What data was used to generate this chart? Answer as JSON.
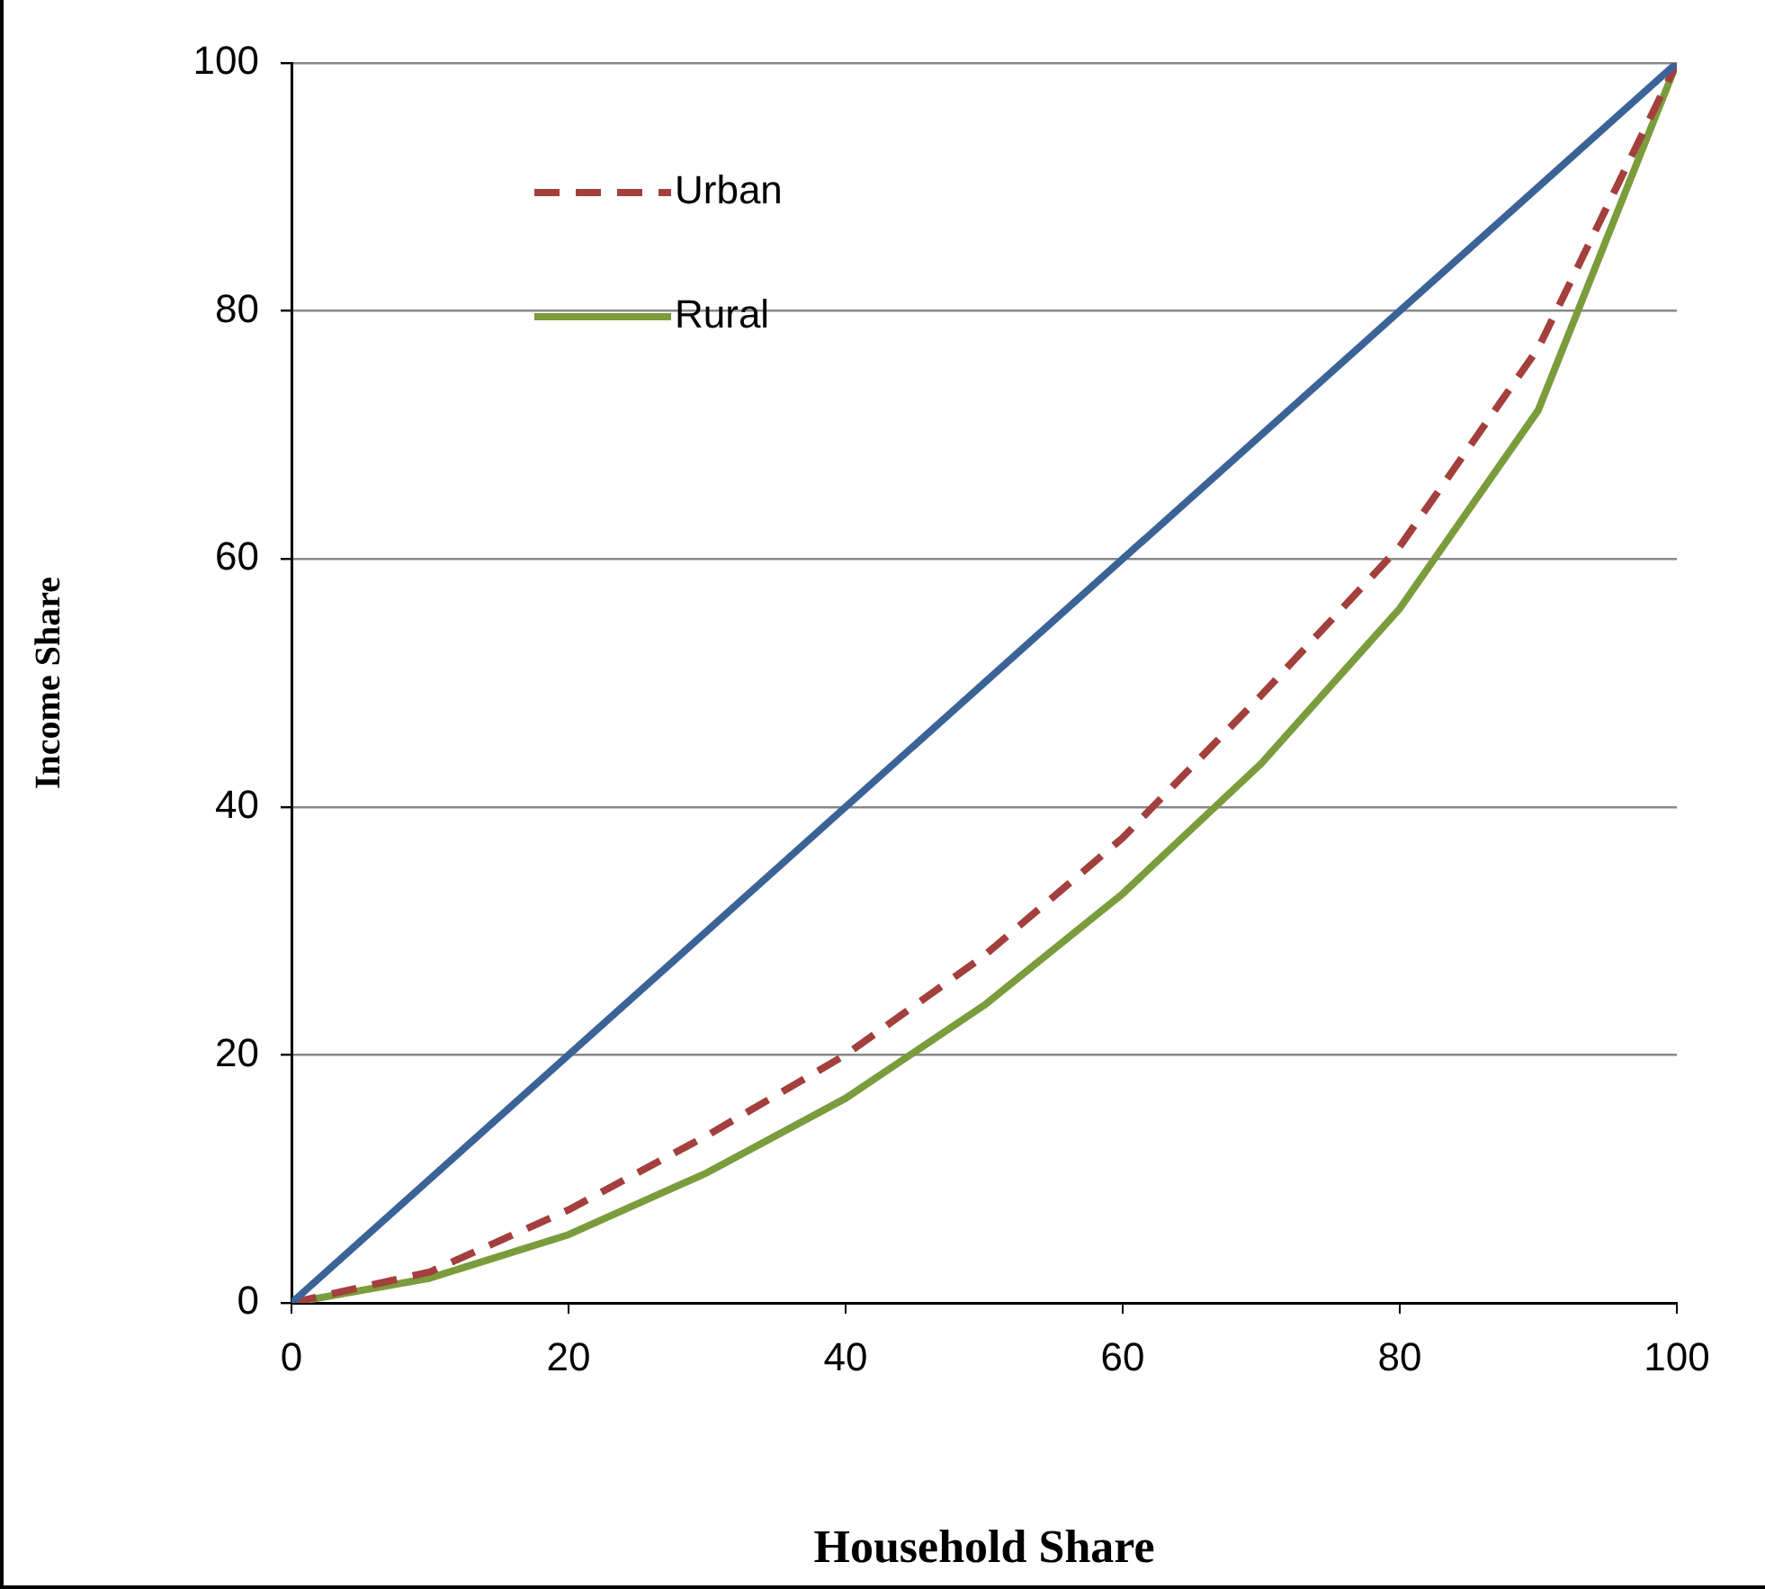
{
  "chart_data": {
    "type": "line",
    "xlabel": "Household Share",
    "ylabel": "Income Share",
    "x": [
      0,
      10,
      20,
      30,
      40,
      50,
      60,
      70,
      80,
      90,
      100
    ],
    "series": [
      {
        "color": "#3b6397",
        "x": [
          0,
          100
        ],
        "values": [
          0,
          100
        ]
      },
      {
        "name": "Urban",
        "color": "#a33f3c",
        "line_style": "dashed",
        "values": [
          0,
          2.5,
          7.5,
          13.5,
          20,
          28,
          37.5,
          49,
          61,
          77,
          100
        ]
      },
      {
        "name": "Rural",
        "color": "#7b9c3c",
        "values": [
          0,
          2,
          5.5,
          10.5,
          16.5,
          24,
          33,
          43.5,
          56,
          72,
          100
        ]
      }
    ],
    "xlim": [
      0,
      100
    ],
    "xticks": [
      0,
      20,
      40,
      60,
      80,
      100
    ],
    "ylim": [
      0,
      100
    ],
    "yticks": [
      0,
      20,
      40,
      60,
      80,
      100
    ],
    "grid": "y",
    "legend": "top left",
    "marker": "none",
    "line_style": "solid"
  }
}
